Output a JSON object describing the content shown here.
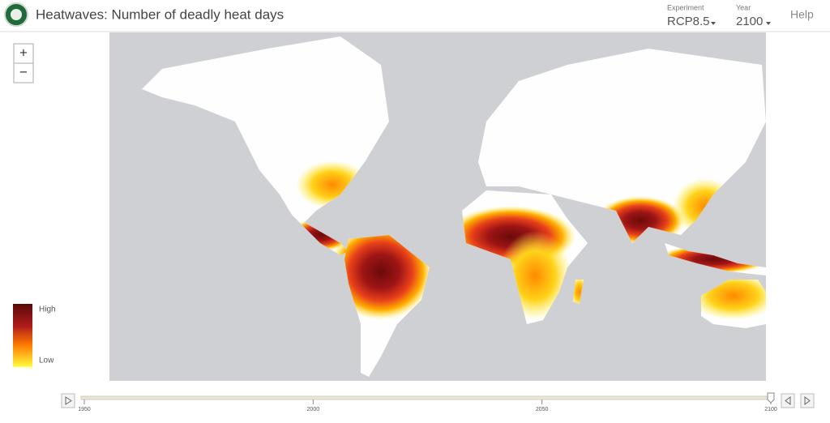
{
  "header": {
    "title": "Heatwaves: Number of deadly heat days",
    "experiment": {
      "label": "Experiment",
      "value": "RCP8.5"
    },
    "year": {
      "label": "Year",
      "value": "2100"
    },
    "help": "Help"
  },
  "zoom": {
    "in": "+",
    "out": "−"
  },
  "legend": {
    "high": "High",
    "low": "Low"
  },
  "timeline": {
    "ticks": [
      1950,
      2000,
      2050,
      2100
    ]
  }
}
